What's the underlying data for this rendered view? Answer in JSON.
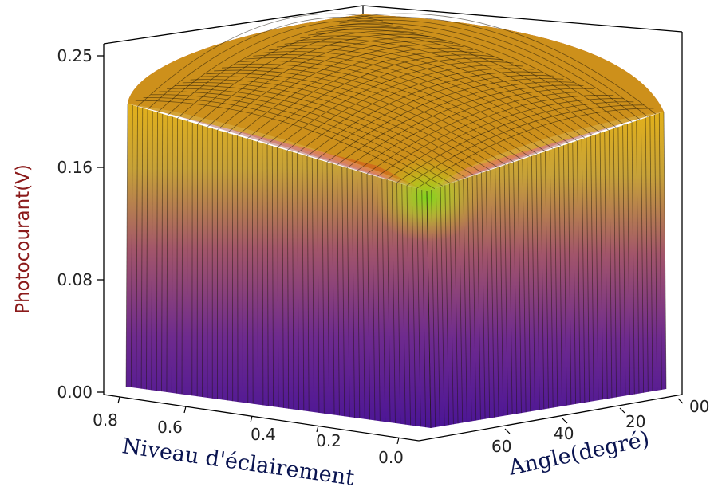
{
  "chart_data": {
    "type": "surface3d",
    "title": "",
    "zlabel": "Photocourant(V)",
    "xlabel": "Niveau d'éclairement",
    "ylabel": "Angle(degré)",
    "z_ticks": [
      "0.00",
      "0.08",
      "0.16",
      "0.25"
    ],
    "x_ticks": [
      "0.8",
      "0.6",
      "0.4",
      "0.2",
      "0.0"
    ],
    "y_ticks": [
      "00",
      "20",
      "40",
      "60"
    ],
    "xlim": [
      0,
      0.8
    ],
    "ylim": [
      0,
      80
    ],
    "zlim": [
      0,
      0.25
    ],
    "surface": {
      "plateau_value": 0.25,
      "value_at_origin": 0.16,
      "description_points": [
        {
          "niveau": 0.0,
          "angle": 0,
          "photocourant": 0.16
        },
        {
          "niveau": 0.8,
          "angle": 0,
          "photocourant": 0.21
        },
        {
          "niveau": 0.0,
          "angle": 80,
          "photocourant": 0.21
        },
        {
          "niveau": 0.8,
          "angle": 80,
          "photocourant": 0.25
        }
      ]
    },
    "colormap": [
      "#4b1596",
      "#7a2a9a",
      "#b8556a",
      "#d69a30",
      "#c8d21a",
      "#8cd616",
      "#f08018",
      "#cc3a10",
      "#8a1408"
    ],
    "grid": false,
    "legend": "none"
  }
}
